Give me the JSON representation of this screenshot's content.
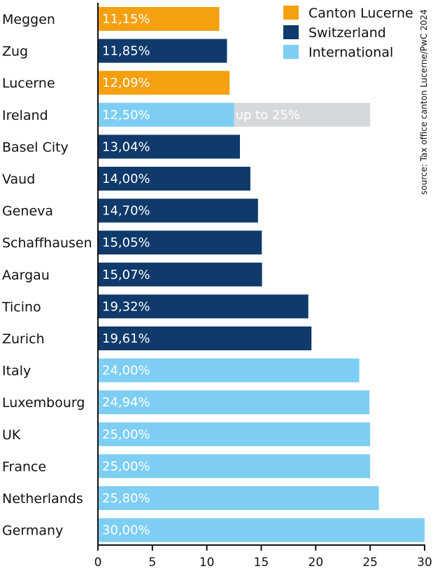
{
  "chart_data": {
    "type": "bar",
    "orientation": "horizontal",
    "categories": [
      "Meggen",
      "Zug",
      "Lucerne",
      "Ireland",
      "Basel City",
      "Vaud",
      "Geneva",
      "Schaffhausen",
      "Aargau",
      "Ticino",
      "Zurich",
      "Italy",
      "Luxembourg",
      "UK",
      "France",
      "Netherlands",
      "Germany"
    ],
    "values": [
      11.15,
      11.85,
      12.09,
      12.5,
      13.04,
      14.0,
      14.7,
      15.05,
      15.07,
      19.32,
      19.61,
      24.0,
      24.94,
      25.0,
      25.0,
      25.8,
      30.0
    ],
    "value_labels": [
      "11,15%",
      "11,85%",
      "12,09%",
      "12,50%",
      "13,04%",
      "14,00%",
      "14,70%",
      "15,05%",
      "15,07%",
      "19,32%",
      "19,61%",
      "24,00%",
      "24,94%",
      "25,00%",
      "25,00%",
      "25,80%",
      "30,00%"
    ],
    "groups": [
      "Canton Lucerne",
      "Switzerland",
      "Canton Lucerne",
      "International",
      "Switzerland",
      "Switzerland",
      "Switzerland",
      "Switzerland",
      "Switzerland",
      "Switzerland",
      "Switzerland",
      "International",
      "International",
      "International",
      "International",
      "International",
      "International"
    ],
    "extensions": [
      {
        "category": "Ireland",
        "value": 25,
        "label": "up to 25%",
        "color": "#d6d9dc"
      }
    ],
    "xlim": [
      0,
      30
    ],
    "xticks": [
      0,
      5,
      10,
      15,
      20,
      25,
      30
    ],
    "grid": false,
    "legend": {
      "position": "top-right",
      "items": [
        {
          "name": "Canton Lucerne",
          "color": "#f5a00f"
        },
        {
          "name": "Switzerland",
          "color": "#0f3a6b"
        },
        {
          "name": "International",
          "color": "#7ecef4"
        }
      ]
    },
    "source": "source: Tax office canton Lucerne/PwC 2024"
  }
}
